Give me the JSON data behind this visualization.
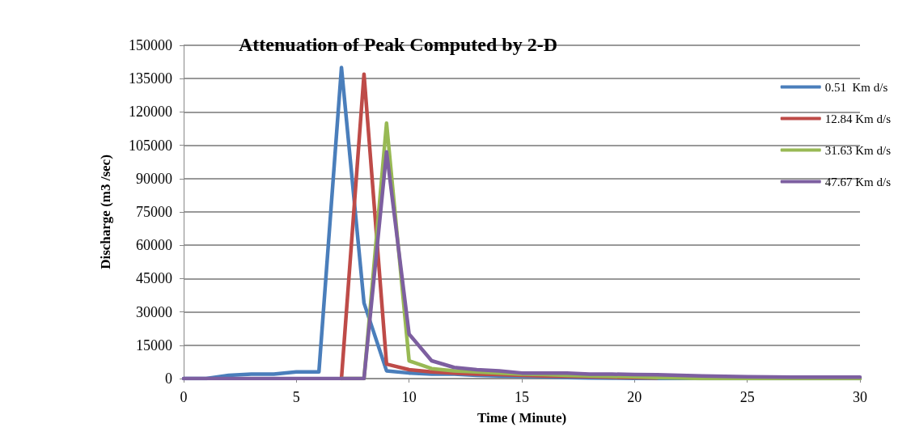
{
  "chart_data": {
    "type": "line",
    "title": "Attenuation of Peak Computed by 2-D",
    "xlabel": "Time ( Minute)",
    "ylabel": "Discharge (m3 /sec)",
    "x": [
      0,
      1,
      2,
      3,
      4,
      5,
      6,
      7,
      8,
      9,
      10,
      11,
      12,
      13,
      14,
      15,
      16,
      17,
      18,
      19,
      20,
      21,
      22,
      23,
      24,
      25,
      26,
      27,
      28,
      29,
      30
    ],
    "series": [
      {
        "name": "0.51  Km d/s",
        "color": "#4a7ebb",
        "values": [
          0,
          0,
          1500,
          2000,
          2000,
          3000,
          3000,
          140000,
          34000,
          3500,
          2500,
          2000,
          2000,
          1500,
          1200,
          1000,
          800,
          500,
          300,
          200,
          100,
          0,
          0,
          0,
          0,
          0,
          0,
          0,
          0,
          0,
          0
        ]
      },
      {
        "name": "12.84 Km d/s",
        "color": "#be4b48",
        "values": [
          null,
          null,
          null,
          null,
          null,
          null,
          null,
          0,
          137000,
          6500,
          4000,
          3000,
          2500,
          2000,
          1800,
          1500,
          1200,
          1000,
          800,
          600,
          500,
          300,
          null,
          null,
          null,
          null,
          null,
          null,
          null,
          null,
          null
        ]
      },
      {
        "name": "31.63 Km d/s",
        "color": "#98b954",
        "values": [
          null,
          null,
          null,
          null,
          null,
          null,
          null,
          0,
          0,
          115000,
          8000,
          4500,
          3500,
          3000,
          2500,
          2000,
          1800,
          1500,
          1200,
          1000,
          800,
          500,
          300,
          0,
          0,
          0,
          0,
          0,
          0,
          0,
          0
        ]
      },
      {
        "name": "47.67 Km d/s",
        "color": "#7d5fa0",
        "values": [
          0,
          0,
          0,
          0,
          0,
          0,
          0,
          0,
          0,
          102000,
          20000,
          8000,
          5000,
          4000,
          3500,
          2500,
          2500,
          2500,
          2000,
          2000,
          1800,
          1700,
          1500,
          1200,
          1000,
          800,
          700,
          600,
          600,
          600,
          600
        ]
      }
    ],
    "xlim": [
      0,
      30
    ],
    "xticks": [
      0,
      5,
      10,
      15,
      20,
      25,
      30
    ],
    "ylim": [
      0,
      150000
    ],
    "yticks": [
      0,
      15000,
      30000,
      45000,
      60000,
      75000,
      90000,
      105000,
      120000,
      135000,
      150000
    ],
    "grid": "y",
    "legend": "top right",
    "marker": "none",
    "line_style": "solid"
  }
}
